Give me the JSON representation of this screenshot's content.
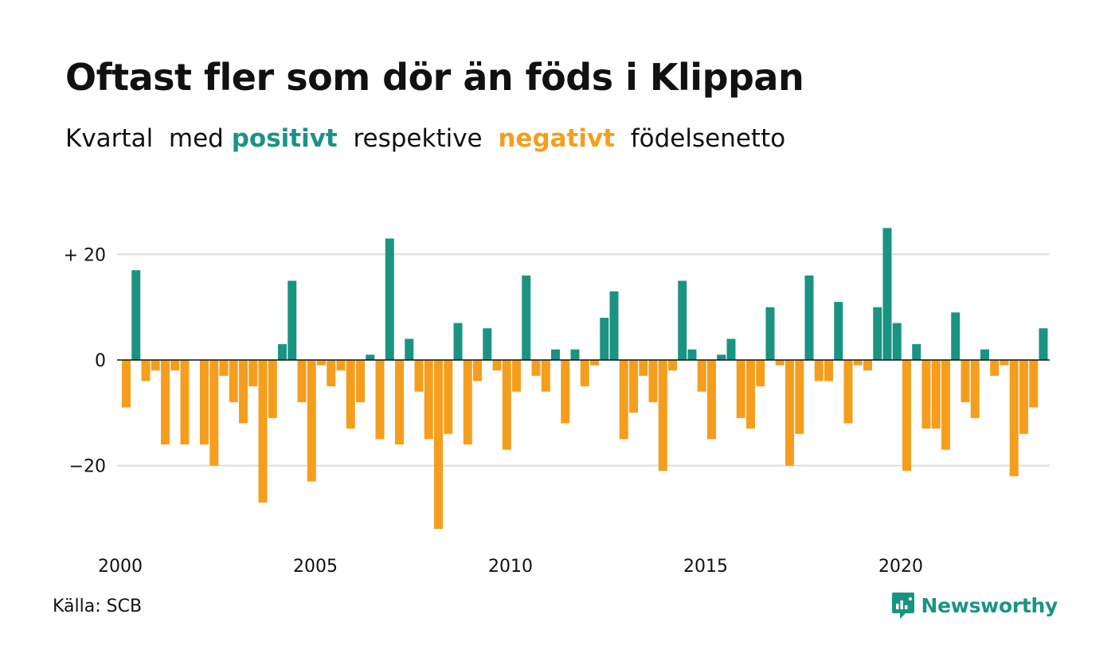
{
  "header": {
    "title": "Oftast fler som dör än föds i Klippan",
    "subtitle_parts": {
      "prefix": "Kvartal  med ",
      "positive": "positivt",
      "middle": "  respektive  ",
      "negative": "negativt",
      "suffix": "  födelsenetto"
    }
  },
  "footer": {
    "source": "Källa: SCB",
    "brand": "Newsworthy",
    "brand_icon": "newsworthy-logo-icon"
  },
  "colors": {
    "positive": "#1b9383",
    "negative": "#f59e1d",
    "grid": "#dddddd",
    "axis": "#111111"
  },
  "chart_data": {
    "type": "bar",
    "start_year": 2000,
    "quarters_per_year": 4,
    "ylim": [
      -32,
      26
    ],
    "yticks": [
      {
        "value": 20,
        "label": "+ 20"
      },
      {
        "value": 0,
        "label": "0"
      },
      {
        "value": -20,
        "label": "−20"
      }
    ],
    "xticks": [
      {
        "year": 2000,
        "label": "2000"
      },
      {
        "year": 2005,
        "label": "2005"
      },
      {
        "year": 2010,
        "label": "2010"
      },
      {
        "year": 2015,
        "label": "2015"
      },
      {
        "year": 2020,
        "label": "2020"
      }
    ],
    "values": [
      -9,
      17,
      -4,
      -2,
      -16,
      -2,
      -16,
      0,
      -16,
      -20,
      -3,
      -8,
      -12,
      -5,
      -27,
      -11,
      3,
      15,
      -8,
      -23,
      -1,
      -5,
      -2,
      -13,
      -8,
      1,
      -15,
      23,
      -16,
      4,
      -6,
      -15,
      -32,
      -14,
      7,
      -16,
      -4,
      6,
      -2,
      -17,
      -6,
      16,
      -3,
      -6,
      2,
      -12,
      2,
      -5,
      -1,
      8,
      13,
      -15,
      -10,
      -3,
      -8,
      -21,
      -2,
      15,
      2,
      -6,
      -15,
      1,
      4,
      -11,
      -13,
      -5,
      10,
      -1,
      -20,
      -14,
      16,
      -4,
      -4,
      11,
      -12,
      -1,
      -2,
      10,
      25,
      7,
      -21,
      3,
      -13,
      -13,
      -17,
      9,
      -8,
      -11,
      2,
      -3,
      -1,
      -22,
      -14,
      -9,
      6
    ],
    "grid": true,
    "legend": "none"
  }
}
